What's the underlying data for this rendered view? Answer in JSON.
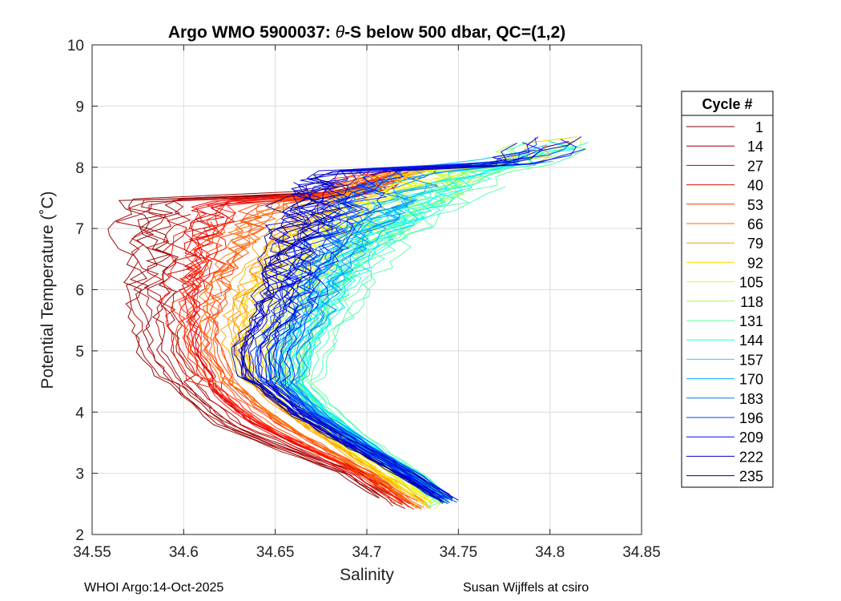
{
  "chart_data": {
    "type": "line",
    "title_prefix": "Argo WMO 5900037: ",
    "title_symbol": "θ",
    "title_suffix": "-S below 500 dbar,  QC=(1,2)",
    "xlabel": "Salinity",
    "ylabel": "Potential Temperature (˚C)",
    "xlim": [
      34.55,
      34.85
    ],
    "ylim": [
      2,
      10
    ],
    "xticks": [
      34.55,
      34.6,
      34.65,
      34.7,
      34.75,
      34.8,
      34.85
    ],
    "xtick_labels": [
      "34.55",
      "34.6",
      "34.65",
      "34.7",
      "34.75",
      "34.8",
      "34.85"
    ],
    "yticks": [
      2,
      3,
      4,
      5,
      6,
      7,
      8,
      9,
      10
    ],
    "ytick_labels": [
      "2",
      "3",
      "4",
      "5",
      "6",
      "7",
      "8",
      "9",
      "10"
    ],
    "grid": true,
    "legend": {
      "title": "Cycle #",
      "placement": "right",
      "entries": [
        {
          "label": "1",
          "color": "#800000"
        },
        {
          "label": "14",
          "color": "#9a0000"
        },
        {
          "label": "27",
          "color": "#b80000"
        },
        {
          "label": "40",
          "color": "#d81000"
        },
        {
          "label": "53",
          "color": "#f03800"
        },
        {
          "label": "66",
          "color": "#ff6a00"
        },
        {
          "label": "79",
          "color": "#ffa000"
        },
        {
          "label": "92",
          "color": "#ffd800"
        },
        {
          "label": "105",
          "color": "#d8ff20"
        },
        {
          "label": "118",
          "color": "#a0ff58"
        },
        {
          "label": "131",
          "color": "#60ff98"
        },
        {
          "label": "144",
          "color": "#28ffd0"
        },
        {
          "label": "157",
          "color": "#00e8ff"
        },
        {
          "label": "170",
          "color": "#00b0ff"
        },
        {
          "label": "183",
          "color": "#0078ff"
        },
        {
          "label": "196",
          "color": "#0040ff"
        },
        {
          "label": "209",
          "color": "#0008ff"
        },
        {
          "label": "222",
          "color": "#0000c8"
        },
        {
          "label": "235",
          "color": "#00008c"
        }
      ]
    },
    "profile_templates": [
      {
        "cycle": 1,
        "theta": [
          2.4,
          3.0,
          3.5,
          3.8,
          4.3,
          5.0,
          5.8,
          6.5,
          7.0,
          7.5
        ],
        "salinity": [
          34.72,
          34.69,
          34.645,
          34.62,
          34.6,
          34.585,
          34.58,
          34.58,
          34.575,
          34.575
        ]
      },
      {
        "cycle": 66,
        "theta": [
          2.4,
          3.0,
          3.5,
          4.0,
          4.5,
          5.0,
          5.5,
          6.0,
          6.5,
          7.0,
          7.5,
          8.0
        ],
        "salinity": [
          34.735,
          34.705,
          34.68,
          34.655,
          34.635,
          34.625,
          34.625,
          34.63,
          34.64,
          34.655,
          34.68,
          34.72
        ]
      },
      {
        "cycle": 131,
        "theta": [
          2.5,
          3.0,
          3.5,
          4.0,
          4.5,
          5.0,
          5.5,
          6.0,
          6.5,
          7.0,
          7.5,
          8.0,
          8.5
        ],
        "salinity": [
          34.745,
          34.725,
          34.7,
          34.68,
          34.665,
          34.67,
          34.68,
          34.69,
          34.7,
          34.72,
          34.745,
          34.775,
          34.81
        ]
      },
      {
        "cycle": 235,
        "theta": [
          2.5,
          3.0,
          3.5,
          4.0,
          4.5,
          5.0,
          5.5,
          6.0,
          6.5,
          7.0,
          7.5,
          8.0
        ],
        "salinity": [
          34.748,
          34.72,
          34.69,
          34.66,
          34.64,
          34.635,
          34.645,
          34.65,
          34.655,
          34.66,
          34.665,
          34.67
        ]
      }
    ]
  },
  "footer": {
    "left": "WHOI Argo:14-Oct-2025",
    "right": "Susan Wijffels at csiro"
  }
}
